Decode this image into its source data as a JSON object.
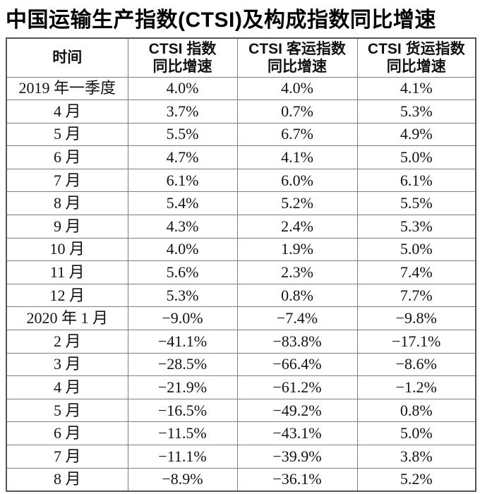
{
  "page_title": "中国运输生产指数(CTSI)及构成指数同比增速",
  "table": {
    "headers": [
      {
        "line1": "时间",
        "line2": ""
      },
      {
        "line1": "CTSI 指数",
        "line2": "同比增速"
      },
      {
        "line1": "CTSI 客运指数",
        "line2": "同比增速"
      },
      {
        "line1": "CTSI 货运指数",
        "line2": "同比增速"
      }
    ],
    "rows": [
      {
        "time": "2019 年一季度",
        "ctsi": "4.0%",
        "passenger": "4.0%",
        "freight": "4.1%"
      },
      {
        "time": "4 月",
        "ctsi": "3.7%",
        "passenger": "0.7%",
        "freight": "5.3%"
      },
      {
        "time": "5 月",
        "ctsi": "5.5%",
        "passenger": "6.7%",
        "freight": "4.9%"
      },
      {
        "time": "6 月",
        "ctsi": "4.7%",
        "passenger": "4.1%",
        "freight": "5.0%"
      },
      {
        "time": "7 月",
        "ctsi": "6.1%",
        "passenger": "6.0%",
        "freight": "6.1%"
      },
      {
        "time": "8 月",
        "ctsi": "5.4%",
        "passenger": "5.2%",
        "freight": "5.5%"
      },
      {
        "time": "9 月",
        "ctsi": "4.3%",
        "passenger": "2.4%",
        "freight": "5.3%"
      },
      {
        "time": "10 月",
        "ctsi": "4.0%",
        "passenger": "1.9%",
        "freight": "5.0%"
      },
      {
        "time": "11 月",
        "ctsi": "5.6%",
        "passenger": "2.3%",
        "freight": "7.4%"
      },
      {
        "time": "12 月",
        "ctsi": "5.3%",
        "passenger": "0.8%",
        "freight": "7.7%"
      },
      {
        "time": "2020 年 1 月",
        "ctsi": "−9.0%",
        "passenger": "−7.4%",
        "freight": "−9.8%"
      },
      {
        "time": "2 月",
        "ctsi": "−41.1%",
        "passenger": "−83.8%",
        "freight": "−17.1%"
      },
      {
        "time": "3 月",
        "ctsi": "−28.5%",
        "passenger": "−66.4%",
        "freight": "−8.6%"
      },
      {
        "time": "4 月",
        "ctsi": "−21.9%",
        "passenger": "−61.2%",
        "freight": "−1.2%"
      },
      {
        "time": "5 月",
        "ctsi": "−16.5%",
        "passenger": "−49.2%",
        "freight": "0.8%"
      },
      {
        "time": "6 月",
        "ctsi": "−11.5%",
        "passenger": "−43.1%",
        "freight": "5.0%"
      },
      {
        "time": "7 月",
        "ctsi": "−11.1%",
        "passenger": "−39.9%",
        "freight": "3.8%"
      },
      {
        "time": "8 月",
        "ctsi": "−8.9%",
        "passenger": "−36.1%",
        "freight": "5.2%"
      }
    ]
  },
  "chart_data": {
    "type": "table",
    "title": "中国运输生产指数(CTSI)及构成指数同比增速",
    "unit": "%",
    "categories": [
      "2019年一季度",
      "4月",
      "5月",
      "6月",
      "7月",
      "8月",
      "9月",
      "10月",
      "11月",
      "12月",
      "2020年1月",
      "2月",
      "3月",
      "4月",
      "5月",
      "6月",
      "7月",
      "8月"
    ],
    "series": [
      {
        "name": "CTSI指数同比增速",
        "values": [
          4.0,
          3.7,
          5.5,
          4.7,
          6.1,
          5.4,
          4.3,
          4.0,
          5.6,
          5.3,
          -9.0,
          -41.1,
          -28.5,
          -21.9,
          -16.5,
          -11.5,
          -11.1,
          -8.9
        ]
      },
      {
        "name": "CTSI客运指数同比增速",
        "values": [
          4.0,
          0.7,
          6.7,
          4.1,
          6.0,
          5.2,
          2.4,
          1.9,
          2.3,
          0.8,
          -7.4,
          -83.8,
          -66.4,
          -61.2,
          -49.2,
          -43.1,
          -39.9,
          -36.1
        ]
      },
      {
        "name": "CTSI货运指数同比增速",
        "values": [
          4.1,
          5.3,
          4.9,
          5.0,
          6.1,
          5.5,
          5.3,
          5.0,
          7.4,
          7.7,
          -9.8,
          -17.1,
          -8.6,
          -1.2,
          0.8,
          5.0,
          3.8,
          5.2
        ]
      }
    ]
  }
}
